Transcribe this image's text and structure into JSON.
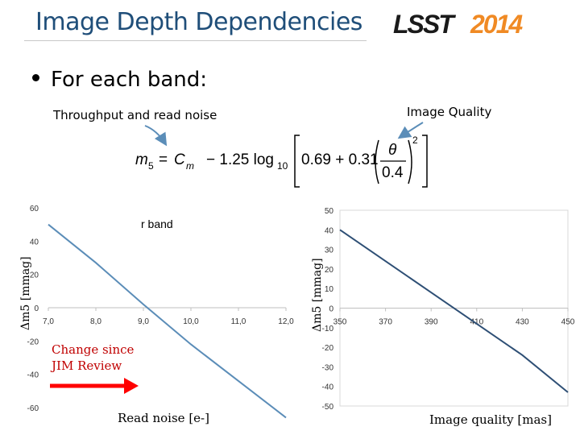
{
  "header": {
    "title": "Image Depth Dependencies",
    "logo_text": "LSST2014"
  },
  "bullet": "For each band:",
  "notes": {
    "throughput": "Throughput and read noise",
    "image_quality": "Image Quality"
  },
  "formula": {
    "lhs": "m",
    "lhs_sub": "5",
    "eq": "=",
    "c": "C",
    "c_sub": "m",
    "coef": "− 1.25 log",
    "log_sub": "10",
    "a": "0.69 + 0.31",
    "num": "θ",
    "den": "0.4",
    "exp": "2"
  },
  "annotation": {
    "red_text": "Change since JIM Review"
  },
  "colors": {
    "title": "#1f4e79",
    "line_left": "#5b8db8",
    "line_right": "#2e4f75",
    "arrow": "#ff0000",
    "grid": "#d9d9d9"
  },
  "chart_data": [
    {
      "type": "line",
      "title": "",
      "annotation": "r band",
      "xlabel": "Read noise [e-]",
      "ylabel": "Δm5 [mmag]",
      "xlim": [
        7,
        12
      ],
      "ylim": [
        -60,
        60
      ],
      "x_ticks": [
        "7,0",
        "8,0",
        "9,0",
        "10,0",
        "11,0",
        "12,0"
      ],
      "y_ticks": [
        "60",
        "40",
        "20",
        "0",
        "-20",
        "-40",
        "-60"
      ],
      "series": [
        {
          "x": [
            7.0,
            8.0,
            9.0,
            10.0,
            11.0,
            12.0
          ],
          "y": [
            50,
            27,
            2,
            -22,
            -44,
            -66
          ]
        }
      ]
    },
    {
      "type": "line",
      "title": "",
      "xlabel": "Image quality [mas]",
      "ylabel": "Δm5 [mmag]",
      "xlim": [
        350,
        450
      ],
      "ylim": [
        -50,
        50
      ],
      "x_ticks": [
        "350",
        "370",
        "390",
        "410",
        "430",
        "450"
      ],
      "y_ticks": [
        "50",
        "40",
        "30",
        "20",
        "10",
        "0",
        "-10",
        "-20",
        "-30",
        "-40",
        "-50"
      ],
      "series": [
        {
          "x": [
            350,
            370,
            390,
            410,
            430,
            450
          ],
          "y": [
            40,
            24,
            8,
            -8,
            -24,
            -43
          ]
        }
      ]
    }
  ]
}
